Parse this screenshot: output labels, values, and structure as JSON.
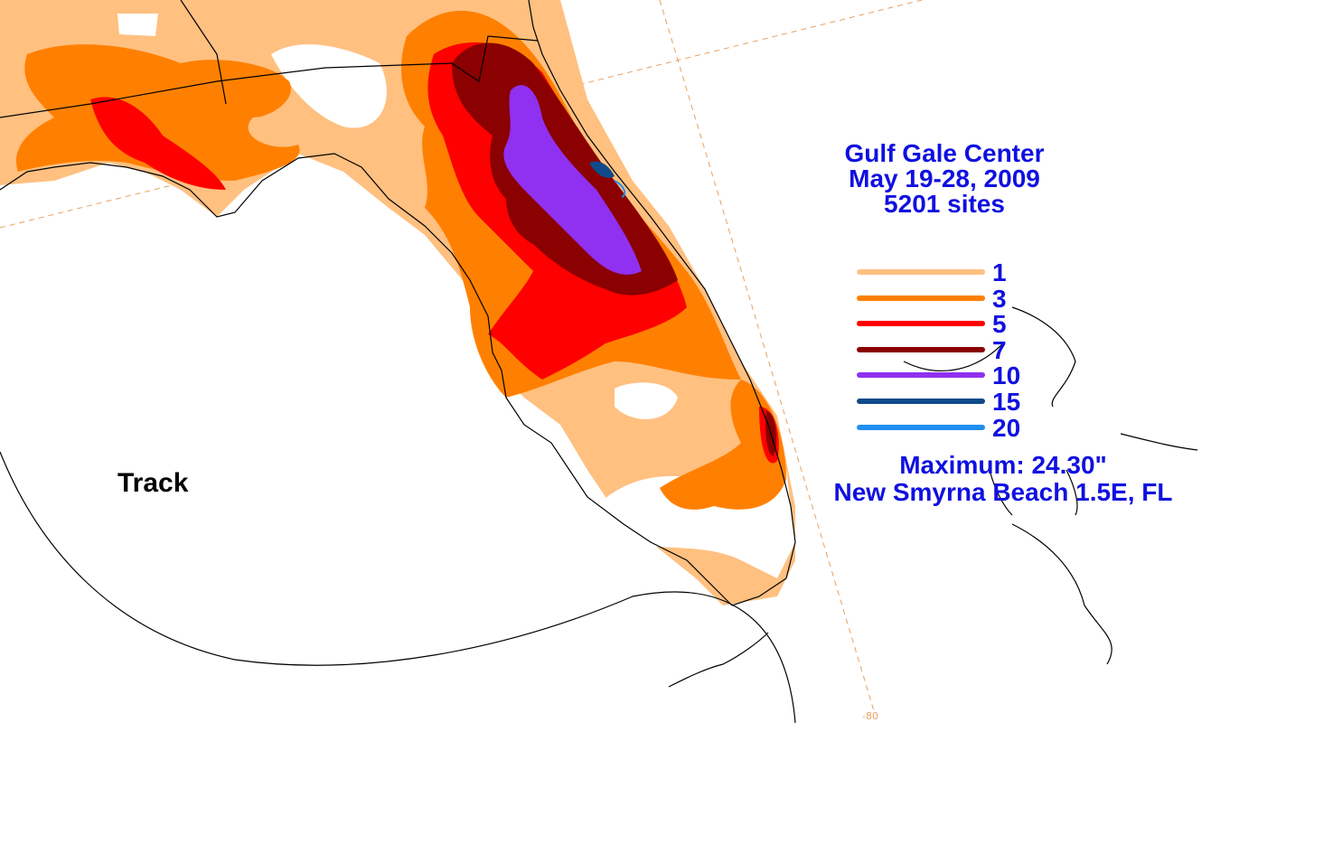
{
  "title": {
    "line1": "Gulf Gale Center",
    "line2": "May 19-28, 2009",
    "line3": "5201 sites"
  },
  "legend": [
    {
      "label": "1",
      "color": "#ffc080"
    },
    {
      "label": "3",
      "color": "#ff8000"
    },
    {
      "label": "5",
      "color": "#ff0000"
    },
    {
      "label": "7",
      "color": "#8b0000"
    },
    {
      "label": "10",
      "color": "#9030f0"
    },
    {
      "label": "15",
      "color": "#104a8a"
    },
    {
      "label": "20",
      "color": "#2090f0"
    }
  ],
  "maximum": {
    "value_text": "Maximum: 24.30\"",
    "location_text": "New Smyrna Beach 1.5E, FL"
  },
  "track_label": "Track",
  "longitude_label": "-80",
  "colors": {
    "text_blue": "#1010e0",
    "graticule": "#e8a060",
    "outline": "#000000"
  }
}
